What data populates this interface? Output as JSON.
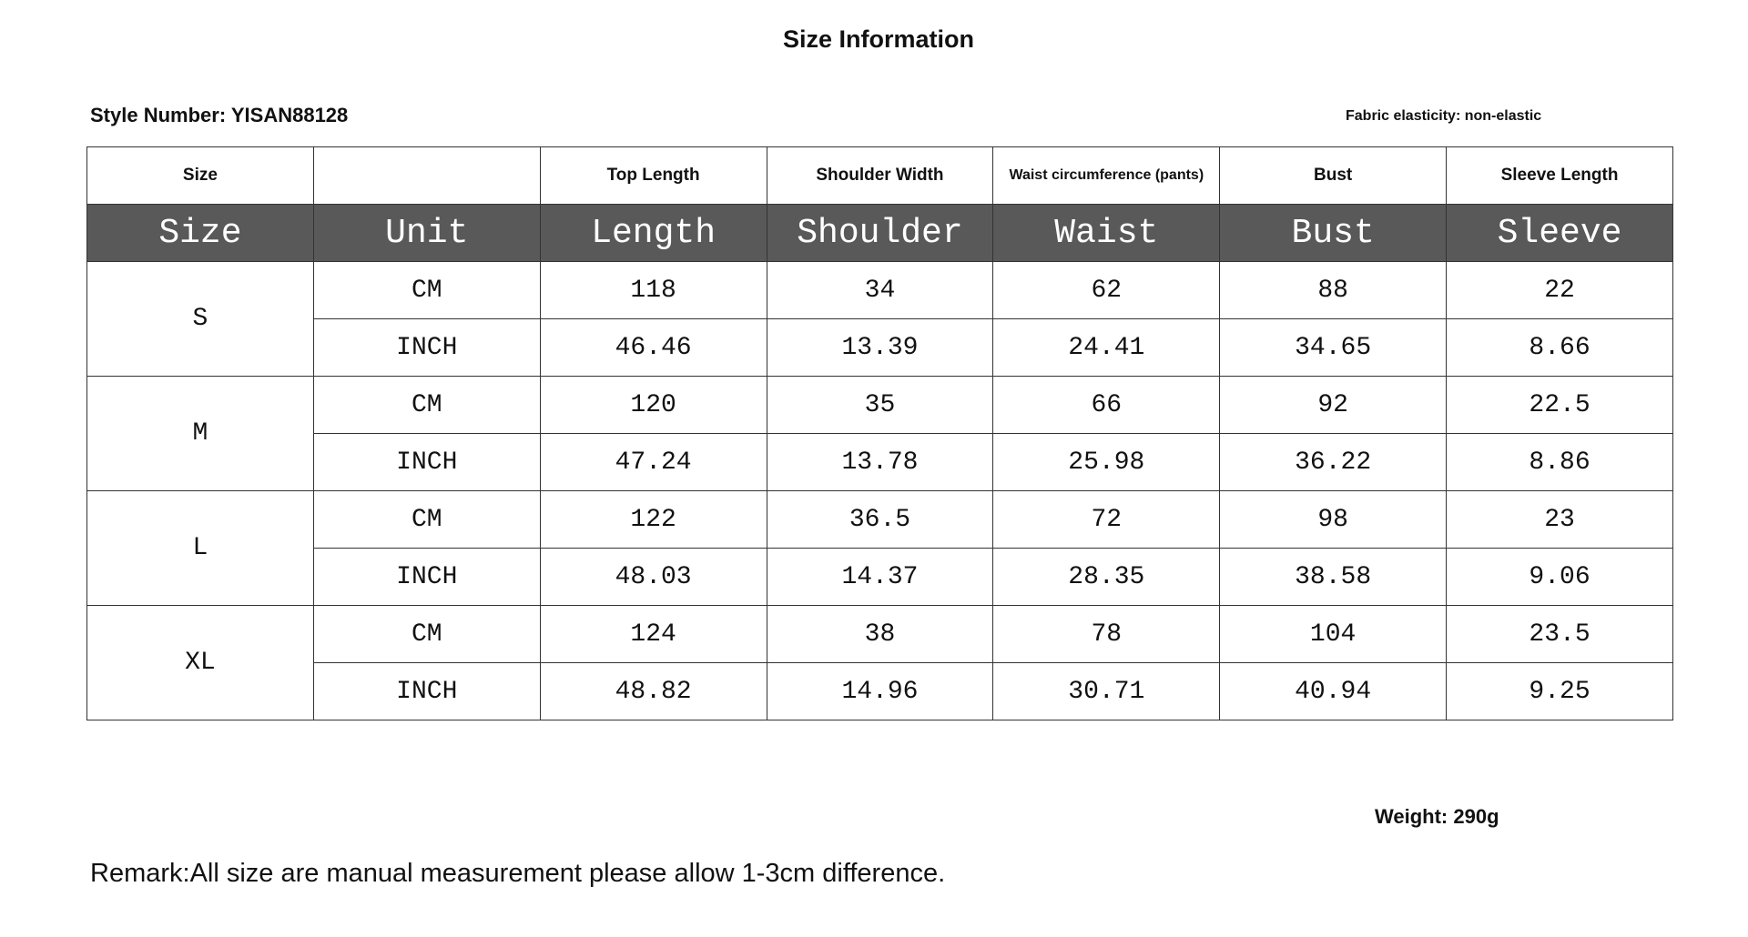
{
  "header": {
    "title": "Size Information",
    "style_number": "Style Number: YISAN88128",
    "fabric_elasticity": "Fabric elasticity: non-elastic"
  },
  "table": {
    "columns": [
      "Size",
      "",
      "Top Length",
      "Shoulder Width",
      "Waist circumference (pants)",
      "Bust",
      "Sleeve Length"
    ],
    "subheader": [
      "Size",
      "Unit",
      "Length",
      "Shoulder",
      "Waist",
      "Bust",
      "Sleeve"
    ],
    "groups": [
      {
        "size": "S",
        "rows": [
          [
            "CM",
            "118",
            "34",
            "62",
            "88",
            "22"
          ],
          [
            "INCH",
            "46.46",
            "13.39",
            "24.41",
            "34.65",
            "8.66"
          ]
        ]
      },
      {
        "size": "M",
        "rows": [
          [
            "CM",
            "120",
            "35",
            "66",
            "92",
            "22.5"
          ],
          [
            "INCH",
            "47.24",
            "13.78",
            "25.98",
            "36.22",
            "8.86"
          ]
        ]
      },
      {
        "size": "L",
        "rows": [
          [
            "CM",
            "122",
            "36.5",
            "72",
            "98",
            "23"
          ],
          [
            "INCH",
            "48.03",
            "14.37",
            "28.35",
            "38.58",
            "9.06"
          ]
        ]
      },
      {
        "size": "XL",
        "rows": [
          [
            "CM",
            "124",
            "38",
            "78",
            "104",
            "23.5"
          ],
          [
            "INCH",
            "48.82",
            "14.96",
            "30.71",
            "40.94",
            "9.25"
          ]
        ]
      }
    ]
  },
  "footer": {
    "weight": "Weight: 290g",
    "remark": "Remark:All size are manual measurement please allow 1-3cm difference."
  }
}
